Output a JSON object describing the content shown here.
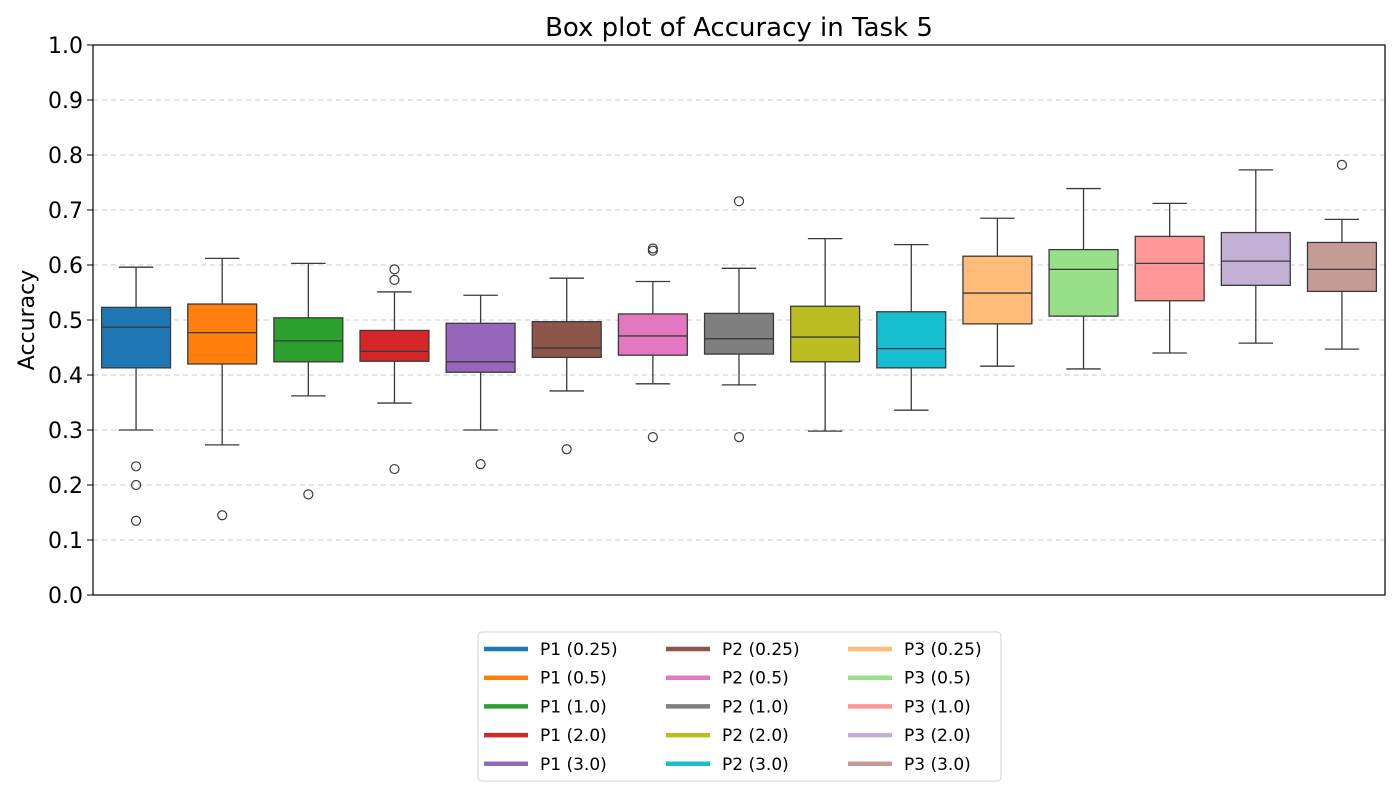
{
  "chart_data": {
    "type": "box",
    "title": "Box plot of Accuracy in Task 5",
    "xlabel": "",
    "ylabel": "Accuracy",
    "ylim": [
      0.0,
      1.0
    ],
    "yticks": [
      "0.0",
      "0.1",
      "0.2",
      "0.3",
      "0.4",
      "0.5",
      "0.6",
      "0.7",
      "0.8",
      "0.9",
      "1.0"
    ],
    "grid": "horizontal-dashed",
    "legend_position": "bottom-center",
    "series": [
      {
        "name": "P1 (0.25)",
        "color": "#1f77b4",
        "whisker_low": 0.3,
        "q1": 0.413,
        "median": 0.487,
        "q3": 0.523,
        "whisker_high": 0.596,
        "outliers": [
          0.234,
          0.2,
          0.135
        ]
      },
      {
        "name": "P1 (0.5)",
        "color": "#ff7f0e",
        "whisker_low": 0.273,
        "q1": 0.42,
        "median": 0.477,
        "q3": 0.529,
        "whisker_high": 0.612,
        "outliers": [
          0.145
        ]
      },
      {
        "name": "P1 (1.0)",
        "color": "#2ca02c",
        "whisker_low": 0.362,
        "q1": 0.424,
        "median": 0.462,
        "q3": 0.504,
        "whisker_high": 0.603,
        "outliers": [
          0.183
        ]
      },
      {
        "name": "P1 (2.0)",
        "color": "#d62728",
        "whisker_low": 0.349,
        "q1": 0.425,
        "median": 0.443,
        "q3": 0.481,
        "whisker_high": 0.551,
        "outliers": [
          0.592,
          0.573,
          0.229
        ]
      },
      {
        "name": "P1 (3.0)",
        "color": "#9467bd",
        "whisker_low": 0.3,
        "q1": 0.405,
        "median": 0.424,
        "q3": 0.494,
        "whisker_high": 0.545,
        "outliers": [
          0.238
        ]
      },
      {
        "name": "P2 (0.25)",
        "color": "#8c564b",
        "whisker_low": 0.371,
        "q1": 0.432,
        "median": 0.449,
        "q3": 0.497,
        "whisker_high": 0.576,
        "outliers": [
          0.265
        ]
      },
      {
        "name": "P2 (0.5)",
        "color": "#e377c2",
        "whisker_low": 0.384,
        "q1": 0.436,
        "median": 0.471,
        "q3": 0.511,
        "whisker_high": 0.57,
        "outliers": [
          0.63,
          0.626,
          0.287
        ]
      },
      {
        "name": "P2 (1.0)",
        "color": "#7f7f7f",
        "whisker_low": 0.382,
        "q1": 0.438,
        "median": 0.466,
        "q3": 0.512,
        "whisker_high": 0.594,
        "outliers": [
          0.716,
          0.287
        ]
      },
      {
        "name": "P2 (2.0)",
        "color": "#bcbd22",
        "whisker_low": 0.298,
        "q1": 0.424,
        "median": 0.469,
        "q3": 0.525,
        "whisker_high": 0.648,
        "outliers": []
      },
      {
        "name": "P2 (3.0)",
        "color": "#17becf",
        "whisker_low": 0.336,
        "q1": 0.413,
        "median": 0.448,
        "q3": 0.515,
        "whisker_high": 0.637,
        "outliers": []
      },
      {
        "name": "P3 (0.25)",
        "color": "#ffbb78",
        "whisker_low": 0.416,
        "q1": 0.493,
        "median": 0.549,
        "q3": 0.616,
        "whisker_high": 0.685,
        "outliers": []
      },
      {
        "name": "P3 (0.5)",
        "color": "#98df8a",
        "whisker_low": 0.411,
        "q1": 0.507,
        "median": 0.592,
        "q3": 0.628,
        "whisker_high": 0.739,
        "outliers": []
      },
      {
        "name": "P3 (1.0)",
        "color": "#ff9896",
        "whisker_low": 0.44,
        "q1": 0.535,
        "median": 0.603,
        "q3": 0.652,
        "whisker_high": 0.712,
        "outliers": []
      },
      {
        "name": "P3 (2.0)",
        "color": "#c5b0d5",
        "whisker_low": 0.458,
        "q1": 0.563,
        "median": 0.607,
        "q3": 0.659,
        "whisker_high": 0.773,
        "outliers": []
      },
      {
        "name": "P3 (3.0)",
        "color": "#c49c94",
        "whisker_low": 0.447,
        "q1": 0.552,
        "median": 0.592,
        "q3": 0.641,
        "whisker_high": 0.683,
        "outliers": [
          0.782
        ]
      }
    ]
  }
}
